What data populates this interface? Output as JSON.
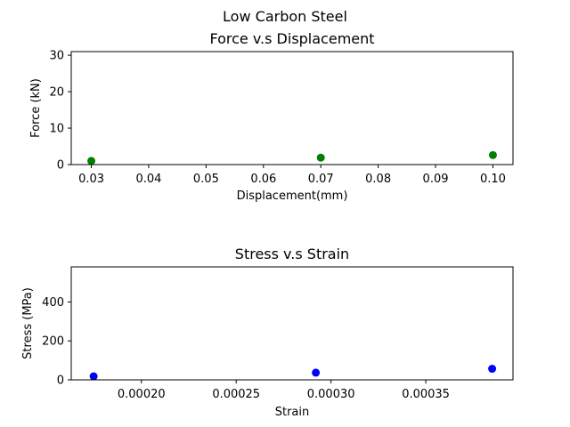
{
  "figure": {
    "suptitle": "Low Carbon Steel"
  },
  "chart_data": [
    {
      "type": "scatter",
      "title": "Force v.s Displacement",
      "xlabel": "Displacement(mm)",
      "ylabel": "Force (kN)",
      "xlim": [
        0.0265,
        0.1035
      ],
      "ylim": [
        0,
        31
      ],
      "xticks": [
        0.03,
        0.04,
        0.05,
        0.06,
        0.07,
        0.08,
        0.09,
        0.1
      ],
      "xtick_labels": [
        "0.03",
        "0.04",
        "0.05",
        "0.06",
        "0.07",
        "0.08",
        "0.09",
        "0.10"
      ],
      "yticks": [
        0,
        10,
        20,
        30
      ],
      "ytick_labels": [
        "0",
        "10",
        "20",
        "30"
      ],
      "grid": false,
      "series": [
        {
          "color": "#008000",
          "x": [
            0.03,
            0.07,
            0.1
          ],
          "y": [
            1.0,
            1.9,
            2.6
          ]
        }
      ]
    },
    {
      "type": "scatter",
      "title": "Stress v.s Strain",
      "xlabel": "Strain",
      "ylabel": "Stress (MPa)",
      "xlim": [
        0.000163,
        0.000396
      ],
      "ylim": [
        0,
        580
      ],
      "xticks": [
        0.0002,
        0.00025,
        0.0003,
        0.00035
      ],
      "xtick_labels": [
        "0.00020",
        "0.00025",
        "0.00030",
        "0.00035"
      ],
      "yticks": [
        0,
        200,
        400
      ],
      "ytick_labels": [
        "0",
        "200",
        "400"
      ],
      "grid": false,
      "series": [
        {
          "color": "#0000ff",
          "x": [
            0.0001748,
            0.000292,
            0.000385
          ],
          "y": [
            18,
            37,
            57
          ]
        }
      ]
    }
  ]
}
